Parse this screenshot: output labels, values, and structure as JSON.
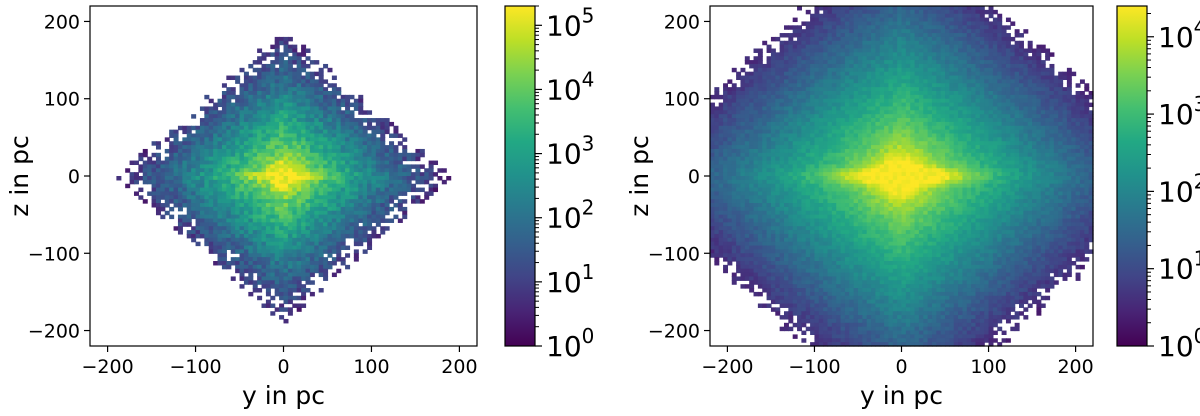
{
  "chart_data": [
    {
      "type": "heatmap",
      "title": "",
      "xlabel": "y in pc",
      "ylabel": "z in pc",
      "xlim": [
        -220,
        220
      ],
      "ylim": [
        -220,
        220
      ],
      "x_ticks": [
        -200,
        -100,
        0,
        100,
        200
      ],
      "x_tick_labels": [
        "−200",
        "−100",
        "0",
        "100",
        "200"
      ],
      "y_ticks": [
        200,
        100,
        0,
        -100,
        -200
      ],
      "y_tick_labels": [
        "200",
        "100",
        "0",
        "−100",
        "−200"
      ],
      "grid": false,
      "colormap": "viridis",
      "colorbar": {
        "scale": "log",
        "range": [
          1,
          200000
        ],
        "ticks": [
          1,
          10,
          100,
          1000,
          10000,
          100000
        ],
        "tick_labels": [
          {
            "base": "10",
            "exp": "0"
          },
          {
            "base": "10",
            "exp": "1"
          },
          {
            "base": "10",
            "exp": "2"
          },
          {
            "base": "10",
            "exp": "3"
          },
          {
            "base": "10",
            "exp": "4"
          },
          {
            "base": "10",
            "exp": "5"
          }
        ]
      },
      "distribution": {
        "peak": 200000,
        "shape": "compact diamond with bright central disc",
        "half_extent_pc": 190,
        "disc_half_length_pc": 40,
        "disc_half_height_pc": 6,
        "outer_edge": "ragged"
      }
    },
    {
      "type": "heatmap",
      "title": "",
      "xlabel": "y in pc",
      "ylabel": "z in pc",
      "xlim": [
        -220,
        220
      ],
      "ylim": [
        -220,
        220
      ],
      "x_ticks": [
        -200,
        -100,
        0,
        100,
        200
      ],
      "x_tick_labels": [
        "−200",
        "−100",
        "0",
        "100",
        "200"
      ],
      "y_ticks": [
        200,
        100,
        0,
        -100,
        -200
      ],
      "y_tick_labels": [
        "200",
        "100",
        "0",
        "−100",
        "−200"
      ],
      "grid": false,
      "colormap": "viridis",
      "colorbar": {
        "scale": "log",
        "range": [
          1,
          25000
        ],
        "ticks": [
          1,
          10,
          100,
          1000,
          10000
        ],
        "tick_labels": [
          {
            "base": "10",
            "exp": "0"
          },
          {
            "base": "10",
            "exp": "1"
          },
          {
            "base": "10",
            "exp": "2"
          },
          {
            "base": "10",
            "exp": "3"
          },
          {
            "base": "10",
            "exp": "4"
          }
        ]
      },
      "distribution": {
        "peak": 25000,
        "shape": "broad diamond filling the axes with bright central disc",
        "half_extent_pc": 320,
        "disc_half_length_pc": 75,
        "disc_half_height_pc": 10,
        "outer_edge": "smooth"
      }
    }
  ]
}
